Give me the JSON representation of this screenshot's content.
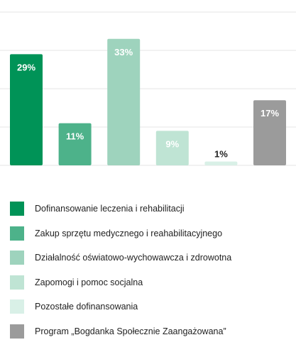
{
  "chart_data": {
    "type": "bar",
    "categories": [
      "Dofinansowanie leczenia i rehabilitacji",
      "Zakup sprzętu medycznego i reahabilitacyjnego",
      "Działalność oświatowo-wychowawcza i zdrowotna",
      "Zapomogi i pomoc socjalna",
      "Pozostałe dofinansowania",
      "Program „Bogdanka Społecznie Zaangażowana”"
    ],
    "values": [
      29,
      11,
      33,
      9,
      1,
      17
    ],
    "value_labels": [
      "29%",
      "11%",
      "33%",
      "9%",
      "1%",
      "17%"
    ],
    "colors": [
      "#009357",
      "#4db28a",
      "#9ed3bd",
      "#bfe4d4",
      "#d9f0e7",
      "#9b9b9b"
    ],
    "ylim": [
      0,
      40
    ],
    "grid": true,
    "legend": "bottom"
  }
}
